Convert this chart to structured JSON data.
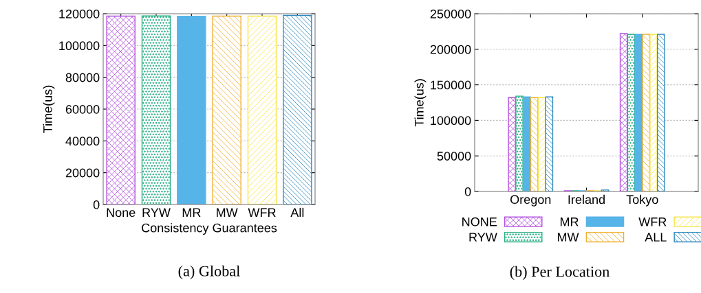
{
  "chart_data": [
    {
      "type": "bar",
      "categories": [
        "None",
        "RYW",
        "MR",
        "MW",
        "WFR",
        "All"
      ],
      "values": [
        118500,
        118600,
        118400,
        118500,
        118500,
        118900
      ],
      "colors": [
        "#b44fe0",
        "#2aaf85",
        "#56b4e9",
        "#efb030",
        "#f8e44a",
        "#2f8ac0"
      ],
      "xlabel": "Consistency Guarantees",
      "ylabel": "Time(us)",
      "ylim": [
        0,
        120000
      ],
      "yticks": [
        0,
        20000,
        40000,
        60000,
        80000,
        100000,
        120000
      ],
      "grid": "y",
      "annotations": [
        "(a) Global"
      ]
    },
    {
      "type": "bar",
      "categories": [
        "Oregon",
        "Ireland",
        "Tokyo"
      ],
      "ylabel": "Time(us)",
      "ylim": [
        0,
        250000
      ],
      "yticks": [
        0,
        50000,
        100000,
        150000,
        200000,
        250000
      ],
      "grid": "y",
      "legend": "bottom",
      "series": [
        {
          "name": "NONE",
          "color": "#b44fe0",
          "values": [
            132000,
            1000,
            222000
          ]
        },
        {
          "name": "RYW",
          "color": "#2aaf85",
          "values": [
            134000,
            1000,
            221000
          ]
        },
        {
          "name": "MR",
          "color": "#56b4e9",
          "values": [
            133000,
            1000,
            221000
          ]
        },
        {
          "name": "MW",
          "color": "#efb030",
          "values": [
            132000,
            1000,
            221000
          ]
        },
        {
          "name": "WFR",
          "color": "#f8e44a",
          "values": [
            132000,
            1000,
            221000
          ]
        },
        {
          "name": "ALL",
          "color": "#2f8ac0",
          "values": [
            133000,
            2000,
            221000
          ]
        }
      ],
      "annotations": [
        "(b) Per Location"
      ]
    }
  ]
}
